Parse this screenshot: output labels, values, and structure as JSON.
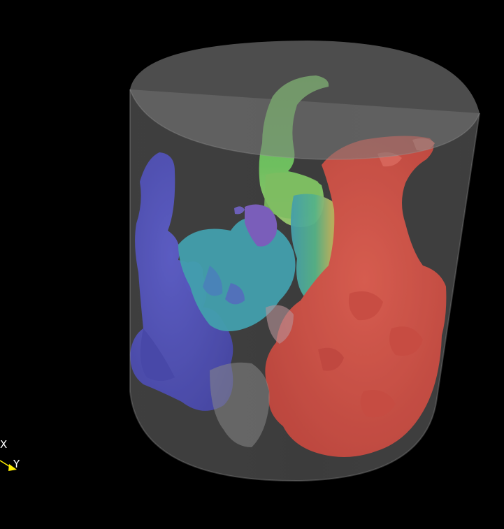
{
  "axes": {
    "x_label": "X",
    "y_label": "Y"
  },
  "colors": {
    "background": "#000000",
    "cylinder": "#6e6e6e",
    "blue_region": "#4a4bc8",
    "cyan_region": "#3fb0b8",
    "green_region": "#5fc84a",
    "yellow_region": "#e0b050",
    "red_region": "#e24a3c",
    "axis_y": "#ffee00"
  },
  "icons": {
    "orientation": "orientation-axes-icon"
  }
}
